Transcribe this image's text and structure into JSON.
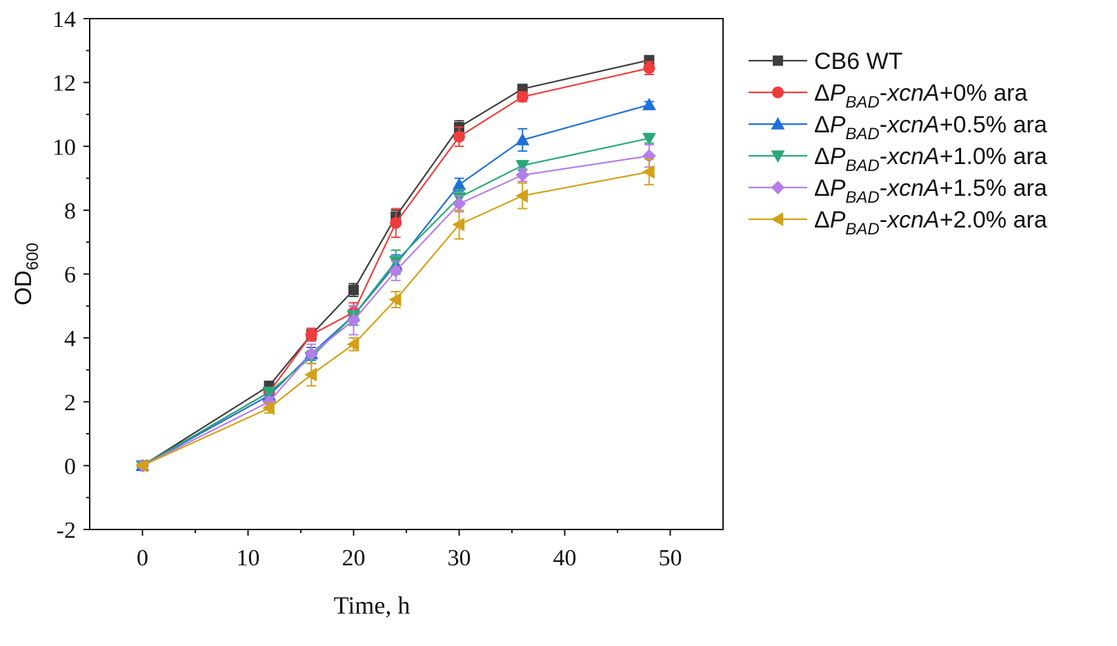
{
  "chart_data": {
    "type": "line",
    "title": "",
    "xlabel": "Time, h",
    "ylabel": "OD",
    "ylabel_subscript": "600",
    "xlim": [
      -5,
      55
    ],
    "ylim": [
      -2,
      14
    ],
    "x_ticks": [
      0,
      10,
      20,
      30,
      40,
      50
    ],
    "y_ticks": [
      -2,
      0,
      2,
      4,
      6,
      8,
      10,
      12,
      14
    ],
    "grid": false,
    "legend_position": "right",
    "x": [
      0,
      12,
      16,
      20,
      24,
      30,
      36,
      48
    ],
    "series": [
      {
        "name": "CB6 WT",
        "legend": {
          "prefix": "CB6 WT",
          "sub": "",
          "mid": "",
          "suffix": ""
        },
        "color": "#3d3d3d",
        "marker": "square",
        "values": [
          0,
          2.5,
          4.1,
          5.5,
          7.8,
          10.6,
          11.8,
          12.7
        ],
        "errors": [
          0.05,
          0.1,
          0.15,
          0.2,
          0.2,
          0.2,
          0.1,
          0.1
        ]
      },
      {
        "name": "ΔP_BAD-xcnA+0% ara",
        "legend": {
          "prefix": "ΔP",
          "sub": "BAD",
          "mid": "-xcnA",
          "suffix": "+0% ara"
        },
        "color": "#f03c3c",
        "marker": "circle",
        "values": [
          0,
          2.3,
          4.1,
          4.8,
          7.6,
          10.3,
          11.55,
          12.45
        ],
        "errors": [
          0.05,
          0.1,
          0.2,
          0.3,
          0.45,
          0.3,
          0.15,
          0.2
        ]
      },
      {
        "name": "ΔP_BAD-xcnA+0.5% ara",
        "legend": {
          "prefix": "ΔP",
          "sub": "BAD",
          "mid": "-xcnA",
          "suffix": "+0.5% ara"
        },
        "color": "#1f6fd9",
        "marker": "triangle-up",
        "values": [
          0,
          2.2,
          3.5,
          4.7,
          6.3,
          8.8,
          10.2,
          11.3
        ],
        "errors": [
          0.05,
          0.15,
          0.2,
          0.3,
          0.3,
          0.2,
          0.35,
          0.1
        ]
      },
      {
        "name": "ΔP_BAD-xcnA+1.0% ara",
        "legend": {
          "prefix": "ΔP",
          "sub": "BAD",
          "mid": "-xcnA",
          "suffix": "+1.0% ara"
        },
        "color": "#2aa878",
        "marker": "triangle-down",
        "values": [
          0,
          2.3,
          3.4,
          4.7,
          6.4,
          8.4,
          9.4,
          10.25
        ],
        "errors": [
          0.05,
          0.15,
          0.2,
          0.3,
          0.35,
          0.25,
          0.15,
          0.15
        ]
      },
      {
        "name": "ΔP_BAD-xcnA+1.5% ara",
        "legend": {
          "prefix": "ΔP",
          "sub": "BAD",
          "mid": "-xcnA",
          "suffix": "+1.5% ara"
        },
        "color": "#b57de8",
        "marker": "diamond",
        "values": [
          0,
          2.0,
          3.5,
          4.55,
          6.1,
          8.2,
          9.1,
          9.7
        ],
        "errors": [
          0.05,
          0.15,
          0.3,
          0.45,
          0.3,
          0.25,
          0.2,
          0.35
        ]
      },
      {
        "name": "ΔP_BAD-xcnA+2.0% ara",
        "legend": {
          "prefix": "ΔP",
          "sub": "BAD",
          "mid": "-xcnA",
          "suffix": "+2.0% ara"
        },
        "color": "#d4a017",
        "marker": "triangle-left",
        "values": [
          0,
          1.8,
          2.85,
          3.8,
          5.2,
          7.55,
          8.45,
          9.2
        ],
        "errors": [
          0.05,
          0.15,
          0.35,
          0.2,
          0.25,
          0.45,
          0.4,
          0.4
        ]
      }
    ]
  }
}
